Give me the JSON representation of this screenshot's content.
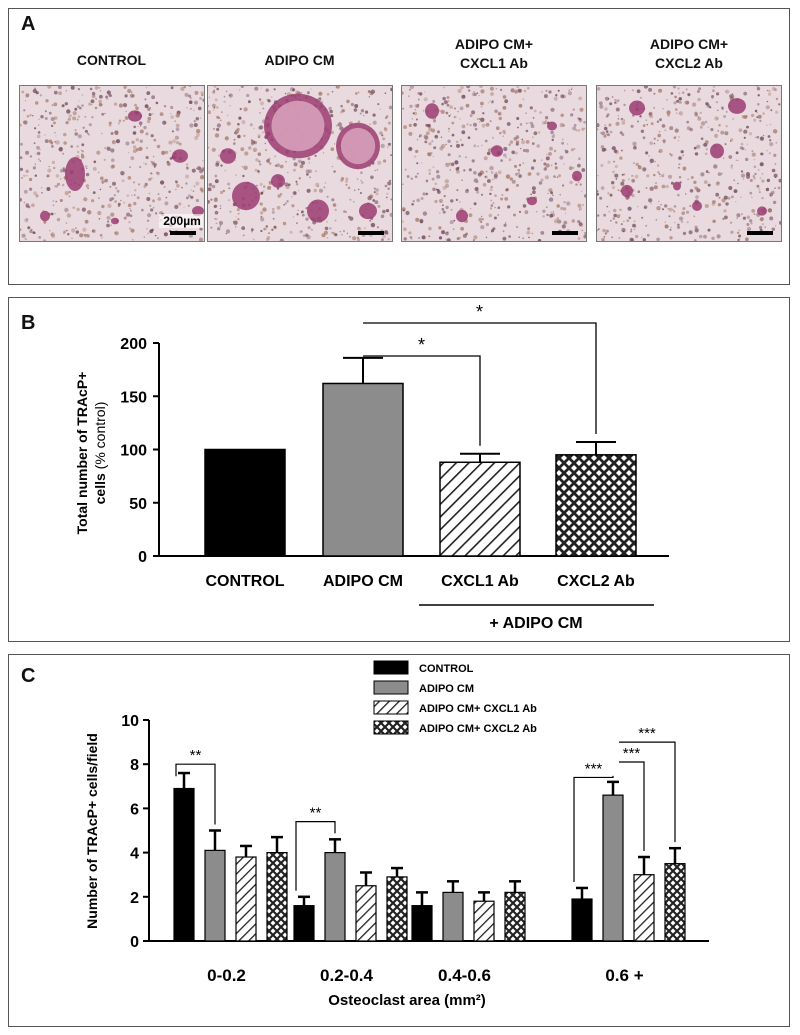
{
  "panel_a": {
    "letter": "A",
    "images": [
      {
        "label_lines": [
          "CONTROL"
        ],
        "scale_label": "200µm",
        "description": "Microscopy field with few small stained cells"
      },
      {
        "label_lines": [
          "ADIPO CM"
        ],
        "scale_label": "",
        "description": "Microscopy field with many large multinucleated stained cells"
      },
      {
        "label_lines": [
          "ADIPO CM+",
          "CXCL1 Ab"
        ],
        "scale_label": "",
        "description": "Microscopy field with small stained cells"
      },
      {
        "label_lines": [
          "ADIPO CM+",
          "CXCL2 Ab"
        ],
        "scale_label": "",
        "description": "Microscopy field with small stained cells"
      }
    ],
    "colors": {
      "stain": "#9b3c72",
      "background": "#e9dadf",
      "dots": "#a77a6a"
    }
  },
  "panel_b": {
    "letter": "B",
    "group_caption": "+ ADIPO CM"
  },
  "panel_c": {
    "letter": "C"
  },
  "chart_data": [
    {
      "type": "bar",
      "panel": "B",
      "title": "",
      "ylabel_bold": "Total number of TRAcP+ cells",
      "ylabel_suffix": "(% control)",
      "ylim": [
        0,
        200
      ],
      "yticks": [
        0,
        50,
        100,
        150,
        200
      ],
      "categories": [
        "CONTROL",
        "ADIPO CM",
        "CXCL1 Ab",
        "CXCL2 Ab"
      ],
      "values": [
        100,
        162,
        88,
        95
      ],
      "errors": [
        0,
        24,
        8,
        12
      ],
      "fills": [
        "solid-black",
        "solid-gray",
        "diagonal-hatch",
        "crosshatch"
      ],
      "significance": [
        {
          "from": 1,
          "to": 2,
          "label": "*"
        },
        {
          "from": 1,
          "to": 3,
          "label": "*"
        }
      ]
    },
    {
      "type": "bar",
      "panel": "C",
      "title": "",
      "ylabel": "Number of TRAcP+ cells/field",
      "xlabel": "Osteoclast area (mm²)",
      "ylim": [
        0,
        10
      ],
      "yticks": [
        0,
        2,
        4,
        6,
        8,
        10
      ],
      "categories": [
        "0-0.2",
        "0.2-0.4",
        "0.4-0.6",
        "0.6 +"
      ],
      "series": [
        {
          "name": "CONTROL",
          "fill": "solid-black",
          "values": [
            6.9,
            1.6,
            1.6,
            1.9
          ],
          "errors": [
            0.7,
            0.4,
            0.6,
            0.5
          ]
        },
        {
          "name": "ADIPO CM",
          "fill": "solid-gray",
          "values": [
            4.1,
            4.0,
            2.2,
            6.6
          ],
          "errors": [
            0.9,
            0.6,
            0.5,
            0.6
          ]
        },
        {
          "name": "ADIPO CM+ CXCL1 Ab",
          "fill": "diagonal-hatch",
          "values": [
            3.8,
            2.5,
            1.8,
            3.0
          ],
          "errors": [
            0.5,
            0.6,
            0.4,
            0.8
          ]
        },
        {
          "name": "ADIPO CM+ CXCL2 Ab",
          "fill": "crosshatch",
          "values": [
            4.0,
            2.9,
            2.2,
            3.5
          ],
          "errors": [
            0.7,
            0.4,
            0.5,
            0.7
          ]
        }
      ],
      "legend_position": "top-right",
      "significance": [
        {
          "category": 0,
          "from_series": 0,
          "to_series": 1,
          "label": "**"
        },
        {
          "category": 1,
          "from_series": 0,
          "to_series": 1,
          "label": "**"
        },
        {
          "category": 3,
          "from_series": 0,
          "to_series": 1,
          "label": "***"
        },
        {
          "category": 3,
          "from_series": 1,
          "to_series": 2,
          "label": "***"
        },
        {
          "category": 3,
          "from_series": 1,
          "to_series": 3,
          "label": "***"
        }
      ]
    }
  ]
}
